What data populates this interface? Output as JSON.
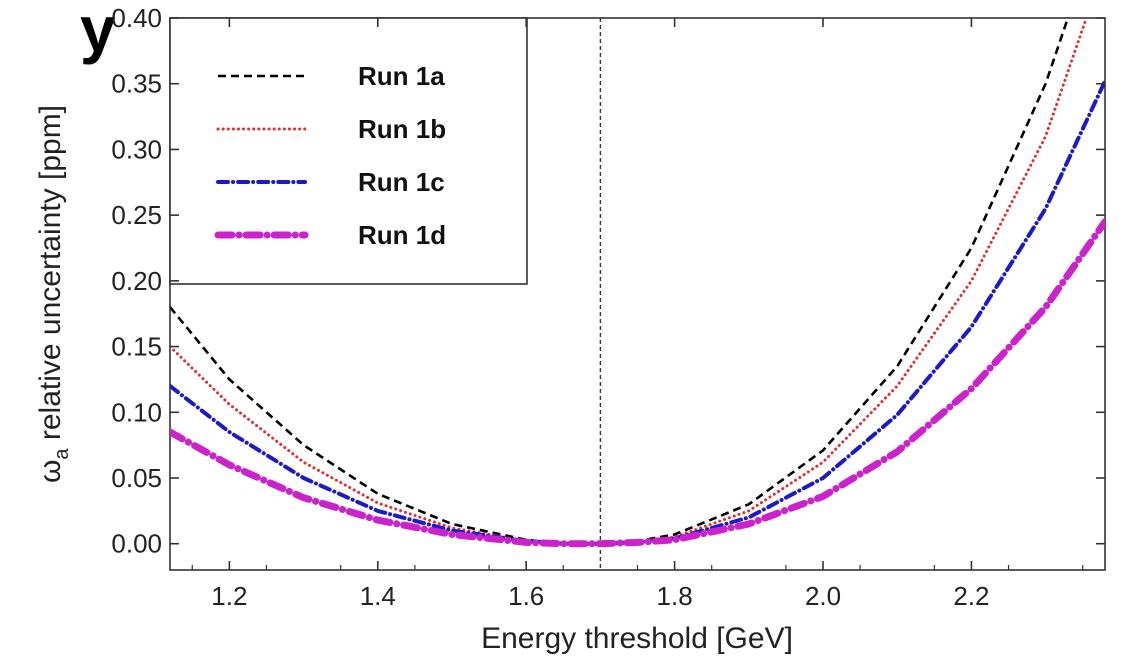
{
  "cut_text": "y",
  "chart_data": {
    "type": "line",
    "xlabel": "Energy threshold [GeV]",
    "ylabel_symbol": "ω",
    "ylabel_subscript": "a",
    "ylabel_rest": " relative uncertainty [ppm]",
    "xlim": [
      1.12,
      2.38
    ],
    "ylim": [
      -0.02,
      0.4
    ],
    "xticks": [
      1.2,
      1.4,
      1.6,
      1.8,
      2.0,
      2.2
    ],
    "xtick_labels": [
      "1.2",
      "1.4",
      "1.6",
      "1.8",
      "2.0",
      "2.2"
    ],
    "yticks": [
      0.0,
      0.05,
      0.1,
      0.15,
      0.2,
      0.25,
      0.3,
      0.35,
      0.4
    ],
    "ytick_labels": [
      "0.00",
      "0.05",
      "0.10",
      "0.15",
      "0.20",
      "0.25",
      "0.30",
      "0.35",
      "0.40"
    ],
    "vline_x": 1.7,
    "grid": false,
    "legend_position": "top-left",
    "series": [
      {
        "name": "Run 1a",
        "color": "#000000",
        "style": "dashed",
        "x": [
          1.12,
          1.2,
          1.3,
          1.4,
          1.5,
          1.6,
          1.65,
          1.7,
          1.75,
          1.8,
          1.9,
          2.0,
          2.1,
          2.2,
          2.3,
          2.33
        ],
        "y": [
          0.18,
          0.125,
          0.075,
          0.038,
          0.015,
          0.003,
          0.0,
          0.0,
          0.002,
          0.007,
          0.03,
          0.071,
          0.135,
          0.225,
          0.35,
          0.4
        ]
      },
      {
        "name": "Run 1b",
        "color": "#e03030",
        "style": "dotted",
        "x": [
          1.12,
          1.2,
          1.3,
          1.4,
          1.5,
          1.6,
          1.65,
          1.7,
          1.75,
          1.8,
          1.9,
          2.0,
          2.1,
          2.2,
          2.3,
          2.355
        ],
        "y": [
          0.15,
          0.106,
          0.062,
          0.031,
          0.012,
          0.002,
          0.0,
          0.0,
          0.001,
          0.005,
          0.025,
          0.062,
          0.12,
          0.2,
          0.31,
          0.4
        ]
      },
      {
        "name": "Run 1c",
        "color": "#1a1acc",
        "style": "dashdot",
        "x": [
          1.12,
          1.2,
          1.3,
          1.4,
          1.5,
          1.6,
          1.65,
          1.7,
          1.75,
          1.8,
          1.9,
          2.0,
          2.1,
          2.2,
          2.3,
          2.38
        ],
        "y": [
          0.12,
          0.085,
          0.05,
          0.025,
          0.01,
          0.002,
          0.0,
          0.0,
          0.001,
          0.004,
          0.02,
          0.05,
          0.098,
          0.165,
          0.255,
          0.352
        ]
      },
      {
        "name": "Run 1d",
        "color": "#cc22cc",
        "style": "dashdot-thick",
        "x": [
          1.12,
          1.2,
          1.3,
          1.4,
          1.5,
          1.6,
          1.65,
          1.7,
          1.75,
          1.8,
          1.9,
          2.0,
          2.1,
          2.2,
          2.3,
          2.38
        ],
        "y": [
          0.085,
          0.06,
          0.035,
          0.018,
          0.007,
          0.001,
          0.0,
          0.0,
          0.001,
          0.003,
          0.015,
          0.036,
          0.07,
          0.118,
          0.18,
          0.245
        ]
      }
    ]
  }
}
